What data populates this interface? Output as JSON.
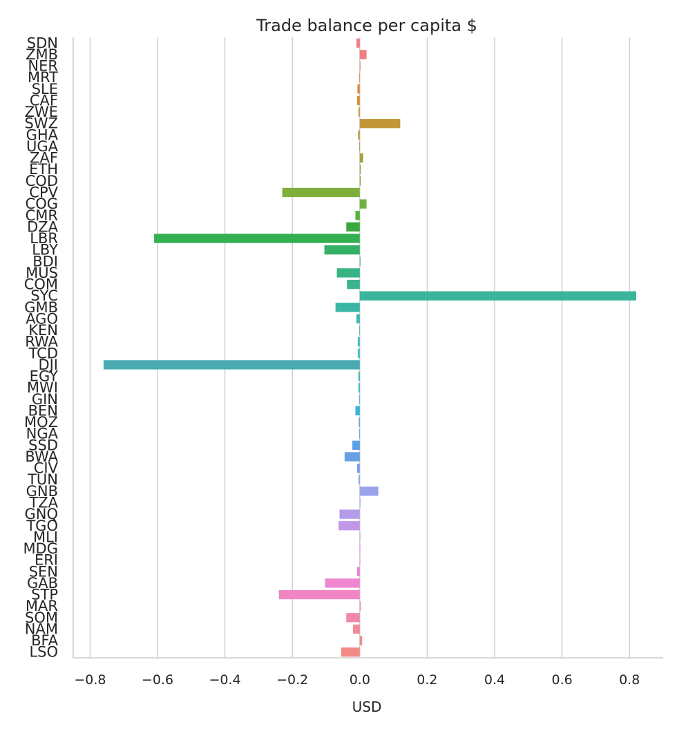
{
  "chart_data": {
    "type": "bar",
    "orientation": "horizontal",
    "title": "Trade balance per capita $",
    "xlabel": "USD",
    "ylabel": "",
    "xlim": [
      -0.85,
      0.9
    ],
    "xticks": [
      -0.8,
      -0.6,
      -0.4,
      -0.2,
      0.0,
      0.2,
      0.4,
      0.6,
      0.8
    ],
    "xtick_labels": [
      "−0.8",
      "−0.6",
      "−0.4",
      "−0.2",
      "0.0",
      "0.2",
      "0.4",
      "0.6",
      "0.8"
    ],
    "grid": "vertical",
    "categories": [
      "SDN",
      "ZMB",
      "NER",
      "MRT",
      "SLE",
      "CAF",
      "ZWE",
      "SWZ",
      "GHA",
      "UGA",
      "ZAF",
      "ETH",
      "COD",
      "CPV",
      "COG",
      "CMR",
      "DZA",
      "LBR",
      "LBY",
      "BDI",
      "MUS",
      "COM",
      "SYC",
      "GMB",
      "AGO",
      "KEN",
      "RWA",
      "TCD",
      "DJI",
      "EGY",
      "MWI",
      "GIN",
      "BEN",
      "MOZ",
      "NGA",
      "SSD",
      "BWA",
      "CIV",
      "TUN",
      "GNB",
      "TZA",
      "GNQ",
      "TGO",
      "MLI",
      "MDG",
      "ERI",
      "SEN",
      "GAB",
      "STP",
      "MAR",
      "SOM",
      "NAM",
      "BFA",
      "LSO"
    ],
    "values": [
      -0.01,
      0.02,
      0.002,
      -0.002,
      -0.007,
      -0.008,
      -0.004,
      0.12,
      -0.005,
      -0.002,
      0.01,
      0.003,
      0.003,
      -0.23,
      0.02,
      -0.013,
      -0.04,
      -0.61,
      -0.105,
      0.002,
      -0.068,
      -0.038,
      0.82,
      -0.072,
      -0.01,
      -0.002,
      -0.006,
      -0.006,
      -0.76,
      -0.004,
      -0.004,
      -0.002,
      -0.013,
      -0.003,
      -0.002,
      -0.022,
      -0.045,
      -0.008,
      -0.004,
      0.055,
      0.002,
      -0.06,
      -0.063,
      0.001,
      0.001,
      0.001,
      -0.008,
      -0.103,
      -0.24,
      0.003,
      -0.04,
      -0.02,
      0.007,
      -0.055
    ],
    "colors": [
      "#f27b8a",
      "#f27b84",
      "#f37d6f",
      "#f27f5d",
      "#e8893b",
      "#d99135",
      "#cd9737",
      "#c39738",
      "#b89d39",
      "#afa03a",
      "#a4a43b",
      "#9aa73b",
      "#8eab3c",
      "#80ae3c",
      "#6fb23c",
      "#56b23b",
      "#3aa83c",
      "#33b050",
      "#35b165",
      "#36b374",
      "#38b484",
      "#39b48f",
      "#3ab59b",
      "#3ab5a6",
      "#3cb7b4",
      "#3dbac0",
      "#3fbac9",
      "#43bfd2",
      "#49aab3",
      "#3ab0b8",
      "#3cb2c4",
      "#3bb4cf",
      "#3eb1db",
      "#44ace0",
      "#4ea6e4",
      "#5a9fe8",
      "#67a0e3",
      "#7ba0e6",
      "#8da2ec",
      "#9aa4eb",
      "#a8a0eb",
      "#b59be9",
      "#c296e9",
      "#d08ee8",
      "#db88e5",
      "#e584df",
      "#ed84d8",
      "#ef86cf",
      "#f086c4",
      "#f187b7",
      "#f188a9",
      "#f28999",
      "#f28a8f",
      "#f28b88"
    ]
  }
}
